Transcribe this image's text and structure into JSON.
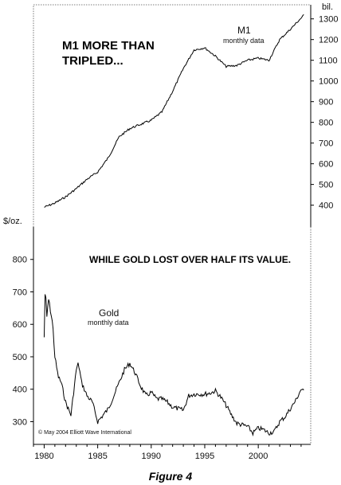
{
  "caption": "Figure 4",
  "chart_data": {
    "type": "line",
    "xlim": [
      1979.0,
      2004.9
    ],
    "xticks": [
      1980,
      1985,
      1990,
      1995,
      2000
    ],
    "grid": false,
    "copyright": "© May 2004 Elliott Wave International",
    "annotations": {
      "m1_headline_line1": "M1 MORE THAN",
      "m1_headline_line2": "TRIPLED...",
      "gold_headline": "WHILE GOLD LOST OVER HALF ITS VALUE."
    },
    "series": [
      {
        "name": "M1",
        "sublabel": "monthly data",
        "axis": "right",
        "unit_label": "bil.",
        "ylim": [
          310,
          1345
        ],
        "yticks": [
          400,
          500,
          600,
          700,
          800,
          900,
          1000,
          1100,
          1200,
          1300
        ],
        "x": [
          1980.0,
          1981.0,
          1982.0,
          1983.0,
          1984.0,
          1985.0,
          1986.0,
          1987.0,
          1988.0,
          1989.0,
          1990.0,
          1991.0,
          1992.0,
          1993.0,
          1994.0,
          1995.0,
          1996.0,
          1997.0,
          1998.0,
          1999.0,
          2000.0,
          2001.0,
          2002.0,
          2003.0,
          2004.3
        ],
        "values": [
          390,
          410,
          440,
          480,
          525,
          560,
          630,
          730,
          770,
          790,
          810,
          850,
          950,
          1060,
          1150,
          1160,
          1120,
          1070,
          1075,
          1100,
          1110,
          1100,
          1200,
          1250,
          1320
        ]
      },
      {
        "name": "Gold",
        "sublabel": "monthly data",
        "axis": "left",
        "unit_label": "$/oz.",
        "ylim": [
          230,
          900
        ],
        "yticks": [
          300,
          400,
          500,
          600,
          700,
          800
        ],
        "x": [
          1980.0,
          1980.1,
          1980.25,
          1980.4,
          1980.6,
          1980.8,
          1981.0,
          1981.3,
          1981.6,
          1982.0,
          1982.5,
          1983.0,
          1983.2,
          1983.5,
          1984.0,
          1984.5,
          1985.0,
          1985.5,
          1986.0,
          1986.5,
          1987.0,
          1987.5,
          1988.0,
          1988.5,
          1989.0,
          1989.5,
          1990.0,
          1990.5,
          1991.0,
          1991.5,
          1992.0,
          1992.5,
          1993.0,
          1993.5,
          1994.0,
          1994.5,
          1995.0,
          1995.5,
          1996.0,
          1996.5,
          1997.0,
          1997.5,
          1998.0,
          1998.5,
          1999.0,
          1999.5,
          2000.0,
          2000.5,
          2001.0,
          2001.5,
          2002.0,
          2002.5,
          2003.0,
          2003.5,
          2004.0,
          2004.3
        ],
        "values": [
          560,
          720,
          620,
          680,
          640,
          600,
          500,
          440,
          420,
          360,
          320,
          460,
          480,
          420,
          380,
          360,
          300,
          320,
          340,
          380,
          420,
          460,
          480,
          450,
          410,
          380,
          390,
          370,
          370,
          360,
          345,
          340,
          335,
          380,
          385,
          385,
          385,
          388,
          395,
          375,
          350,
          320,
          295,
          290,
          285,
          265,
          280,
          275,
          265,
          270,
          300,
          315,
          340,
          365,
          400,
          390
        ]
      }
    ]
  }
}
